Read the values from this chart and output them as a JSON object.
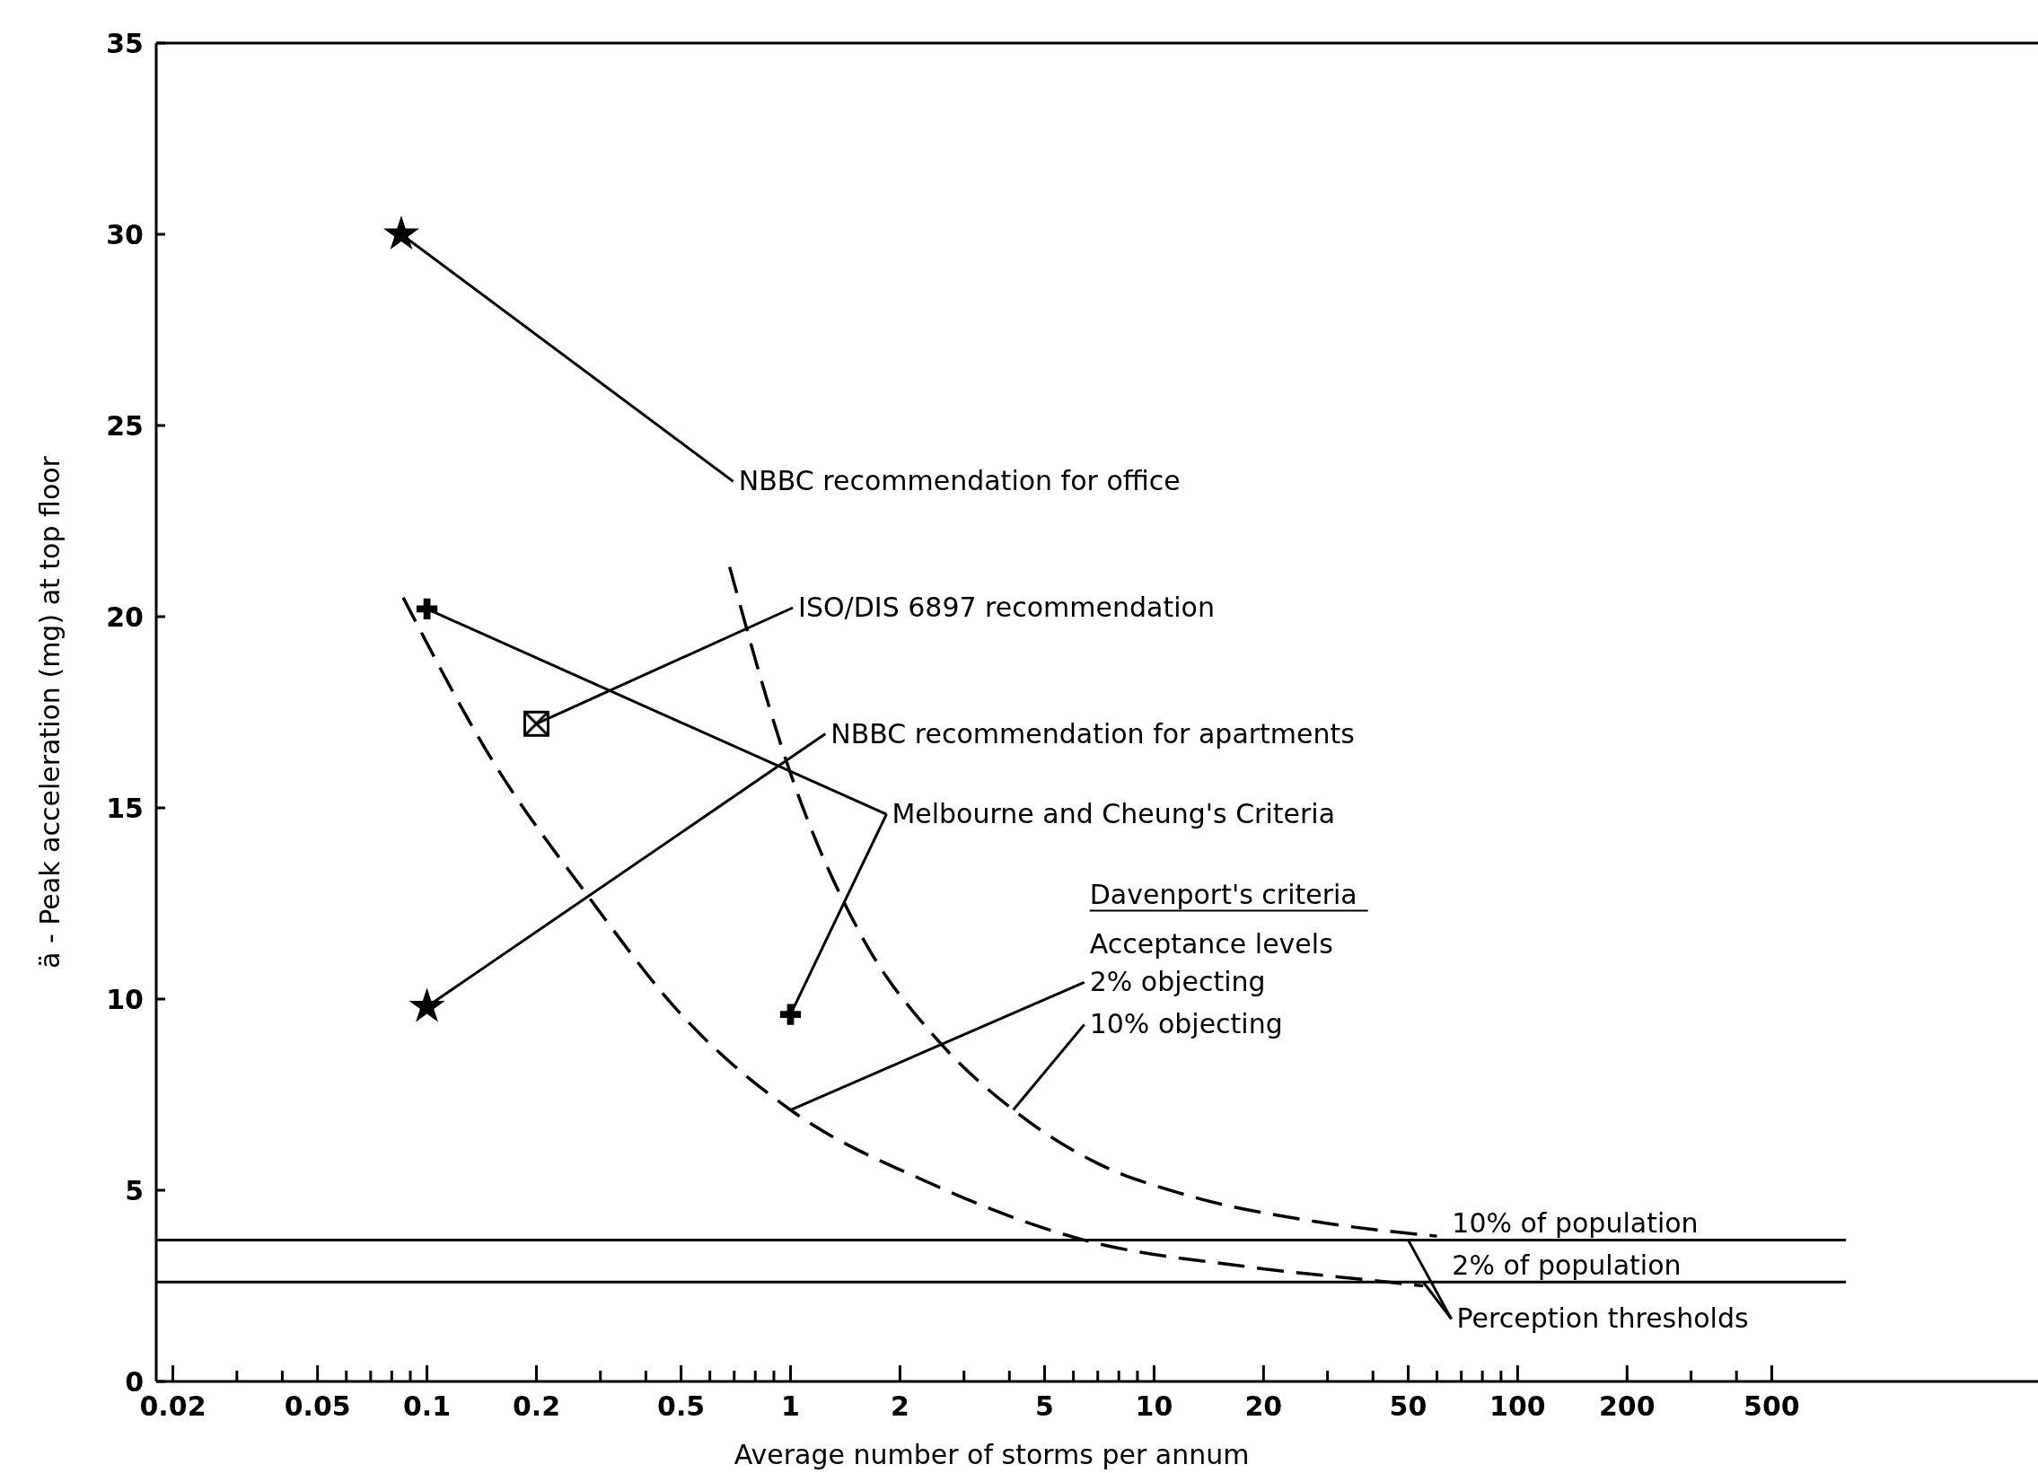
{
  "chart_data": {
    "type": "scatter",
    "xlabel": "Average number of storms per annum",
    "ylabel": "ä - Peak acceleration (mg) at top floor",
    "log": "x",
    "xlim": [
      0.018,
      2700
    ],
    "ylim": [
      0,
      35
    ],
    "xticks": [
      0.02,
      {
        "value": 0.03,
        "label": null
      },
      {
        "value": 0.04,
        "label": null
      },
      0.05,
      {
        "value": 0.06,
        "label": null
      },
      {
        "value": 0.07,
        "label": null
      },
      {
        "value": 0.08,
        "label": null
      },
      {
        "value": 0.09,
        "label": null
      },
      0.1,
      0.2,
      {
        "value": 0.3,
        "label": null
      },
      {
        "value": 0.4,
        "label": null
      },
      0.5,
      {
        "value": 0.6,
        "label": null
      },
      {
        "value": 0.7,
        "label": null
      },
      {
        "value": 0.8,
        "label": null
      },
      {
        "value": 0.9,
        "label": null
      },
      1,
      2,
      {
        "value": 3,
        "label": null
      },
      {
        "value": 4,
        "label": null
      },
      5,
      {
        "value": 6,
        "label": null
      },
      {
        "value": 7,
        "label": null
      },
      {
        "value": 8,
        "label": null
      },
      {
        "value": 9,
        "label": null
      },
      10,
      20,
      {
        "value": 30,
        "label": null
      },
      {
        "value": 40,
        "label": null
      },
      50,
      {
        "value": 60,
        "label": null
      },
      {
        "value": 70,
        "label": null
      },
      {
        "value": 80,
        "label": null
      },
      {
        "value": 90,
        "label": null
      },
      100,
      200,
      {
        "value": 300,
        "label": null
      },
      {
        "value": 400,
        "label": null
      },
      500
    ],
    "yticks": [
      0,
      5,
      10,
      15,
      20,
      25,
      30,
      35
    ],
    "grid": false,
    "series": [
      {
        "marker": "star",
        "color": "#000000",
        "x": [
          0.085
        ],
        "values": [
          30
        ]
      },
      {
        "marker": "square",
        "color": "#000000",
        "x": [
          0.2
        ],
        "values": [
          17.2
        ]
      },
      {
        "marker": "star",
        "color": "#000000",
        "x": [
          0.1
        ],
        "values": [
          9.8
        ]
      },
      {
        "marker": "cross",
        "color": "#000000",
        "x": [
          0.1,
          1
        ],
        "values": [
          20.2,
          9.6
        ]
      },
      {
        "type": "line",
        "line_style": "dashed",
        "marker": "none",
        "color": "#000000",
        "x": [
          0.086,
          0.15,
          0.277,
          0.5,
          1,
          2.4,
          6.4,
          18,
          44,
          55
        ],
        "values": [
          20.5,
          16.3,
          12.7,
          9.6,
          7.1,
          5.2,
          3.7,
          3.0,
          2.6,
          2.5
        ]
      },
      {
        "type": "line",
        "line_style": "dashed",
        "marker": "none",
        "color": "#000000",
        "x": [
          0.68,
          1,
          1.6,
          2.5,
          4.1,
          7,
          12,
          27,
          60
        ],
        "values": [
          21.3,
          15.9,
          11.5,
          9.0,
          7.1,
          5.7,
          4.9,
          4.2,
          3.8
        ]
      }
    ],
    "ref_lines": [
      {
        "axis": "y",
        "value": 3.7,
        "label": "10% of population",
        "color": "#000000"
      },
      {
        "axis": "y",
        "value": 2.6,
        "label": "2% of population",
        "color": "#000000"
      }
    ],
    "annotations": [
      {
        "text": "NBBC recommendation for office",
        "x": 0.085,
        "y": 30
      },
      {
        "text": "ISO/DIS 6897 recommendation",
        "x": 0.2,
        "y": 17.2
      },
      {
        "text": "NBBC recommendation for apartments",
        "x": 0.1,
        "y": 9.8
      },
      {
        "text": "Melbourne and Cheung's Criteria",
        "x": 0.1,
        "y": 20.2
      },
      "Davenport's criteria",
      "Acceptance levels",
      {
        "text": "2% objecting",
        "x": 1,
        "y": 7.1
      },
      {
        "text": "10% objecting",
        "x": 4.1,
        "y": 7.1
      },
      {
        "text": "Perception thresholds",
        "x": 55,
        "y": 2.6
      }
    ]
  }
}
